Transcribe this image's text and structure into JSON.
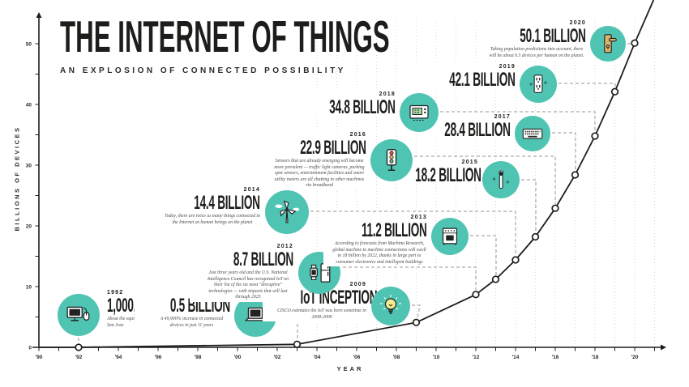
{
  "title": "THE INTERNET OF THINGS",
  "subtitle": "AN EXPLOSION OF CONNECTED POSSIBILITY",
  "colors": {
    "teal": "#50c4b2",
    "ink": "#1d1d1b",
    "grid": "#d8d8d8",
    "dash": "#949494"
  },
  "chart_data": {
    "type": "line",
    "title": "THE INTERNET OF THINGS",
    "xlabel": "YEAR",
    "ylabel": "BILLIONS OF DEVICES",
    "x_range": [
      1990,
      2021
    ],
    "ylim": [
      0,
      55
    ],
    "x_tick_labels": [
      "'90",
      "'92",
      "'94",
      "'96",
      "'98",
      "'00",
      "'02",
      "'04",
      "'06",
      "'08",
      "'10",
      "'12",
      "'14",
      "'16",
      "'18",
      "'20"
    ],
    "x_tick_years": [
      1990,
      1992,
      1994,
      1996,
      1998,
      2000,
      2002,
      2004,
      2006,
      2008,
      2010,
      2012,
      2014,
      2016,
      2018,
      2020
    ],
    "y_tick_values": [
      0,
      10,
      20,
      30,
      40,
      50
    ],
    "grid": "dotted-vertical",
    "legend": "none",
    "curve": [
      [
        1990,
        0
      ],
      [
        1992,
        0.001
      ],
      [
        2003,
        0.5
      ],
      [
        2009,
        4.1
      ],
      [
        2012,
        8.7
      ],
      [
        2013,
        11.2
      ],
      [
        2014,
        14.4
      ],
      [
        2015,
        18.2
      ],
      [
        2016,
        22.9
      ],
      [
        2017,
        28.4
      ],
      [
        2018,
        34.8
      ],
      [
        2019,
        42.1
      ],
      [
        2020,
        50.1
      ],
      [
        2020.95,
        57.2
      ]
    ],
    "milestones": [
      {
        "year_label": "1992",
        "value": 0.001,
        "value_text": "1,000,000",
        "desc": "About the equivalent of the population of San Jose",
        "icon": "desktop-computer"
      },
      {
        "year_label": "2003",
        "value": 0.5,
        "value_text": "0.5 BILLION",
        "desc": "A 49,900% increase in connected devices in just 11 years",
        "icon": "laptop"
      },
      {
        "year_label": "2009",
        "value": 4.1,
        "value_text": "IoT INCEPTION",
        "desc": "CISCO estimates the IoT was born sometime in 2008-2009",
        "icon": "lightbulb"
      },
      {
        "year_label": "2012",
        "value": 8.7,
        "value_text": "8.7 BILLION",
        "desc": "Just three years old and the U.S. National Intelligence Council has recognized IoT on their list of the six most \"disruptive\" technologies — with impacts that will last through 2025",
        "icon": "smartwatch-fridge"
      },
      {
        "year_label": "2013",
        "value": 11.2,
        "value_text": "11.2 BILLION",
        "desc": "According to forecasts from Machina Research, global machine to machine connections will swell to 18 billion by 2022, thanks in large part to consumer electronics and intelligent buildings",
        "icon": "oven"
      },
      {
        "year_label": "2014",
        "value": 14.4,
        "value_text": "14.4 BILLION",
        "desc": "Today, there are twice as many things connected to the Internet as human beings on the planet",
        "icon": "wind-turbine"
      },
      {
        "year_label": "2015",
        "value": 18.2,
        "value_text": "18.2 BILLION",
        "desc": "",
        "icon": "toothbrush"
      },
      {
        "year_label": "2016",
        "value": 22.9,
        "value_text": "22.9 BILLION",
        "desc": "Sensors that are already emerging will become more prevalent — traffic light cameras, parking spot sensors, entertainment facilities and smart utility meters are all chatting to other machines via broadband",
        "icon": "traffic-light"
      },
      {
        "year_label": "2017",
        "value": 28.4,
        "value_text": "28.4 BILLION",
        "desc": "",
        "icon": "keyboard"
      },
      {
        "year_label": "2018",
        "value": 34.8,
        "value_text": "34.8 BILLION",
        "desc": "",
        "icon": "thermostat"
      },
      {
        "year_label": "2019",
        "value": 42.1,
        "value_text": "42.1 BILLION",
        "desc": "",
        "icon": "power-outlet"
      },
      {
        "year_label": "2020",
        "value": 50.1,
        "value_text": "50.1 BILLION",
        "desc": "Taking population predictions into account, there will be about 6.5 devices per human on the planet.",
        "icon": "door-lock"
      }
    ]
  }
}
